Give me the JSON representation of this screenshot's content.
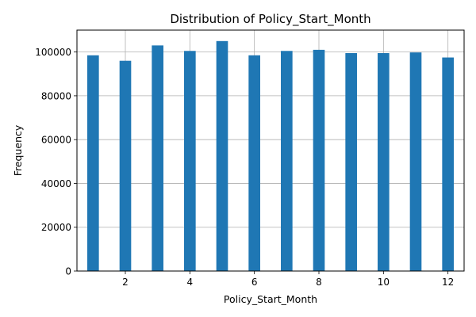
{
  "chart_data": {
    "type": "bar",
    "title": "Distribution of Policy_Start_Month",
    "xlabel": "Policy_Start_Month",
    "ylabel": "Frequency",
    "x": [
      1,
      2,
      3,
      4,
      5,
      6,
      7,
      8,
      9,
      10,
      11,
      12
    ],
    "values": [
      98500,
      96000,
      103000,
      100500,
      105000,
      98500,
      100500,
      101000,
      99500,
      99500,
      99800,
      97500
    ],
    "xlim": [
      0.5,
      12.5
    ],
    "ylim": [
      0,
      110000
    ],
    "xticks": [
      2,
      4,
      6,
      8,
      10,
      12
    ],
    "yticks": [
      0,
      20000,
      40000,
      60000,
      80000,
      100000
    ],
    "grid": true,
    "bar_color": "#1f77b4"
  }
}
